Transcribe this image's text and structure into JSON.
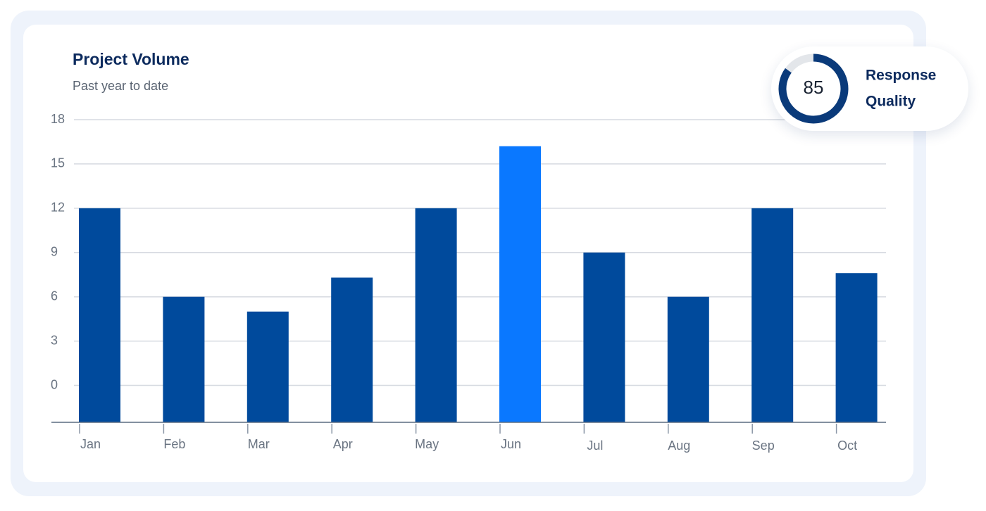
{
  "chart_data": {
    "type": "bar",
    "title": "Project Volume",
    "subtitle": "Past year to date",
    "categories": [
      "Jan",
      "Feb",
      "Mar",
      "Apr",
      "May",
      "Jun",
      "Jul",
      "Aug",
      "Sep",
      "Oct"
    ],
    "values": [
      12,
      6,
      5,
      7.3,
      12,
      16.2,
      9,
      6,
      12,
      7.6
    ],
    "colors": [
      "#004a9c",
      "#004a9c",
      "#004a9c",
      "#004a9c",
      "#004a9c",
      "#0a78ff",
      "#004a9c",
      "#004a9c",
      "#004a9c",
      "#004a9c"
    ],
    "ylim": [
      -2.5,
      18
    ],
    "yticks": [
      0,
      3,
      6,
      9,
      12,
      15,
      18
    ],
    "grid": true
  },
  "gauge": {
    "value": 85,
    "label_line1": "Response",
    "label_line2": "Quality",
    "color": "#0a3a7a",
    "track_color": "#e3e6ea"
  }
}
